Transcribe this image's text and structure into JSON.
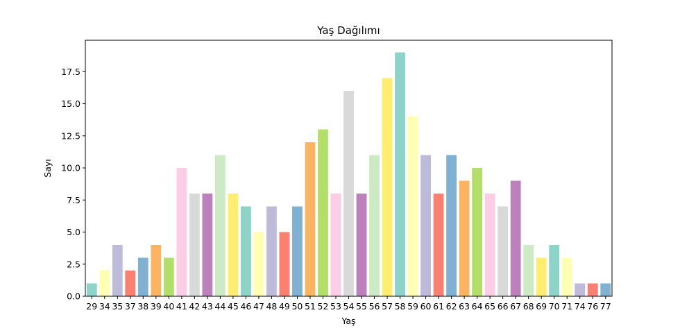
{
  "chart_data": {
    "type": "bar",
    "title": "Yaş Dağılımı",
    "xlabel": "Yaş",
    "ylabel": "Sayı",
    "ylim": [
      0,
      20
    ],
    "yticks": [
      "0.0",
      "2.5",
      "5.0",
      "7.5",
      "10.0",
      "12.5",
      "15.0",
      "17.5"
    ],
    "categories": [
      "29",
      "34",
      "35",
      "37",
      "38",
      "39",
      "40",
      "41",
      "42",
      "43",
      "44",
      "45",
      "46",
      "47",
      "48",
      "49",
      "50",
      "51",
      "52",
      "53",
      "54",
      "55",
      "56",
      "57",
      "58",
      "59",
      "60",
      "61",
      "62",
      "63",
      "64",
      "65",
      "66",
      "67",
      "68",
      "69",
      "70",
      "71",
      "74",
      "76",
      "77"
    ],
    "values": [
      1,
      2,
      4,
      2,
      3,
      4,
      3,
      10,
      8,
      8,
      11,
      8,
      7,
      5,
      7,
      5,
      7,
      12,
      13,
      8,
      16,
      8,
      11,
      17,
      19,
      14,
      11,
      8,
      11,
      9,
      10,
      8,
      7,
      9,
      4,
      3,
      4,
      3,
      1,
      1,
      1
    ],
    "palette": [
      "#8dd3c7",
      "#ffffb3",
      "#bebada",
      "#fb8072",
      "#80b1d3",
      "#fdb462",
      "#b3de69",
      "#fccde5",
      "#d9d9d9",
      "#bc80bd",
      "#ccebc5",
      "#ffed6f"
    ],
    "grid": false,
    "legend": "none"
  }
}
